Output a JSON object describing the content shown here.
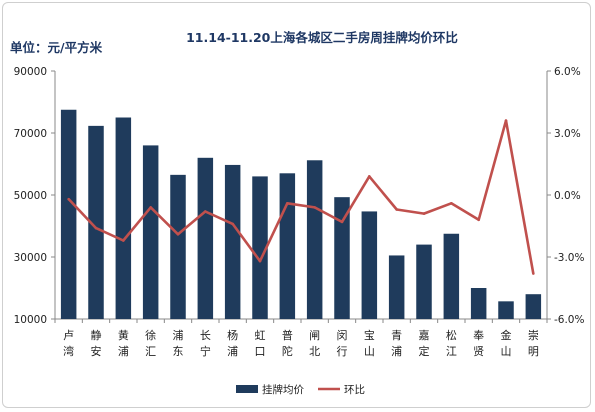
{
  "chart_data": {
    "type": "bar",
    "title": "11.14-11.20上海各城区二手房周挂牌均价环比",
    "unit_label": "单位：元/平方米",
    "categories": [
      [
        "卢",
        "湾"
      ],
      [
        "静",
        "安"
      ],
      [
        "黄",
        "浦"
      ],
      [
        "徐",
        "汇"
      ],
      [
        "浦",
        "东"
      ],
      [
        "长",
        "宁"
      ],
      [
        "杨",
        "浦"
      ],
      [
        "虹",
        "口"
      ],
      [
        "普",
        "陀"
      ],
      [
        "闸",
        "北"
      ],
      [
        "闵",
        "行"
      ],
      [
        "宝",
        "山"
      ],
      [
        "青",
        "浦"
      ],
      [
        "嘉",
        "定"
      ],
      [
        "松",
        "江"
      ],
      [
        "奉",
        "贤"
      ],
      [
        "金",
        "山"
      ],
      [
        "崇",
        "明"
      ]
    ],
    "series": [
      {
        "name": "挂牌均价",
        "axis": "left",
        "type": "bar",
        "color": "#1f3b5c",
        "values": [
          77500,
          72300,
          75000,
          66000,
          56500,
          62000,
          59700,
          56000,
          57000,
          61200,
          49300,
          44700,
          30500,
          34000,
          37500,
          20000,
          15700,
          18000
        ]
      },
      {
        "name": "环比",
        "axis": "right",
        "type": "line",
        "color": "#c0504d",
        "values": [
          -0.2,
          -1.6,
          -2.2,
          -0.6,
          -1.9,
          -0.8,
          -1.4,
          -3.2,
          -0.4,
          -0.6,
          -1.3,
          0.9,
          -0.7,
          -0.9,
          -0.4,
          -1.2,
          3.6,
          -3.8
        ]
      }
    ],
    "left_axis": {
      "min": 10000,
      "max": 90000,
      "ticks": [
        "10000",
        "30000",
        "50000",
        "70000",
        "90000"
      ],
      "tick_values": [
        10000,
        30000,
        50000,
        70000,
        90000
      ]
    },
    "right_axis": {
      "min": -6,
      "max": 6,
      "ticks": [
        "-6.0%",
        "-3.0%",
        "0.0%",
        "3.0%",
        "6.0%"
      ],
      "tick_values": [
        -6,
        -3,
        0,
        3,
        6
      ]
    },
    "grid": false,
    "legend_position": "bottom"
  }
}
